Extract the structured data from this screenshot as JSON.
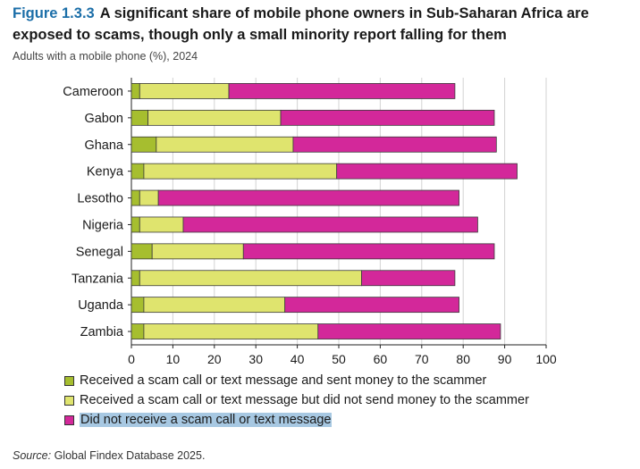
{
  "figure": {
    "label": "Figure 1.3.3",
    "title": "A significant share of mobile phone owners in Sub-Saharan Africa are exposed to scams, though only a small minority report falling for them",
    "subtitle": "Adults with a mobile phone (%), 2024"
  },
  "source": {
    "prefix": "Source:",
    "text": "Global Findex Database 2025."
  },
  "chart_data": {
    "type": "bar",
    "orientation": "horizontal",
    "stacked": true,
    "categories": [
      "Cameroon",
      "Gabon",
      "Ghana",
      "Kenya",
      "Lesotho",
      "Nigeria",
      "Senegal",
      "Tanzania",
      "Uganda",
      "Zambia"
    ],
    "series": [
      {
        "name": "Received a scam call or text message and sent money to the scammer",
        "color": "#a6be2f",
        "values": [
          2,
          4,
          6,
          3,
          2,
          2,
          5,
          2,
          3,
          3
        ]
      },
      {
        "name": "Received a scam call or text message but did not send money to the scammer",
        "color": "#dfe46e",
        "values": [
          21.5,
          32,
          33,
          46.5,
          4.5,
          10.5,
          22,
          53.5,
          34,
          42
        ]
      },
      {
        "name": "Did not receive a scam call or text message",
        "color": "#d3289a",
        "values": [
          54.5,
          51.5,
          49,
          43.5,
          72.5,
          71,
          60.5,
          22.5,
          42,
          44
        ]
      }
    ],
    "xlim": [
      0,
      100
    ],
    "xticks": [
      0,
      10,
      20,
      30,
      40,
      50,
      60,
      70,
      80,
      90,
      100
    ],
    "grid": true,
    "legend_position": "bottom"
  }
}
